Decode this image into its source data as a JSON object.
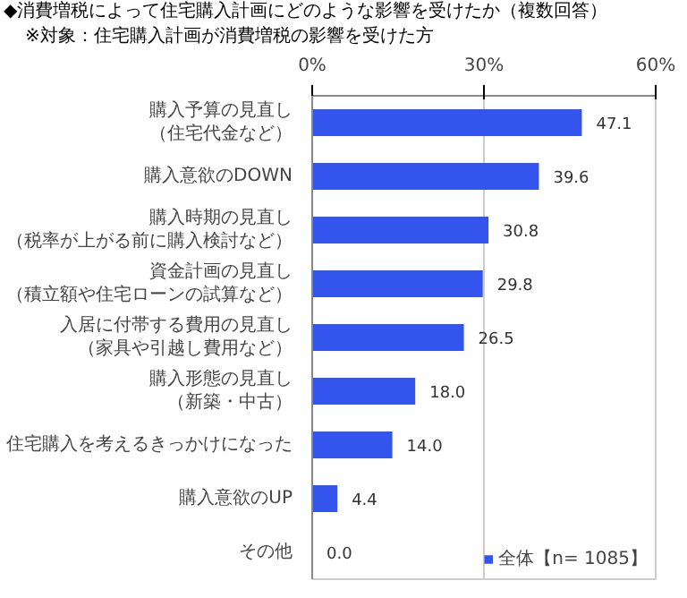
{
  "chart_data": {
    "type": "bar",
    "orientation": "horizontal",
    "title": "◆消費増税によって住宅購入計画にどのような影響を受けたか（複数回答）",
    "subtitle": "※対象：住宅購入計画が消費増税の影響を受けた方",
    "categories": [
      "購入予算の見直し（住宅代金など）",
      "購入意欲のDOWN",
      "購入時期の見直し（税率が上がる前に購入検討など）",
      "資金計画の見直し（積立額や住宅ローンの試算など）",
      "入居に付帯する費用の見直し（家具や引越し費用など）",
      "購入形態の見直し（新築・中古）",
      "住宅購入を考えるきっかけになった",
      "購入意欲のUP",
      "その他"
    ],
    "series": [
      {
        "name": "全体【n= 1085】",
        "color": "#3355ee",
        "values": [
          47.1,
          39.6,
          30.8,
          29.8,
          26.5,
          18.0,
          14.0,
          4.4,
          0.0
        ],
        "value_labels": [
          "47.1",
          "39.6",
          "30.8",
          "29.8",
          "26.5",
          "18.0",
          "14.0",
          "4.4",
          "0.0"
        ]
      }
    ],
    "xlim": [
      0,
      60
    ],
    "xticks": [
      {
        "value": 0,
        "label": "0%"
      },
      {
        "value": 30,
        "label": "30%"
      },
      {
        "value": 60,
        "label": "60%"
      }
    ],
    "grid": "x",
    "legend": "bottom right"
  }
}
